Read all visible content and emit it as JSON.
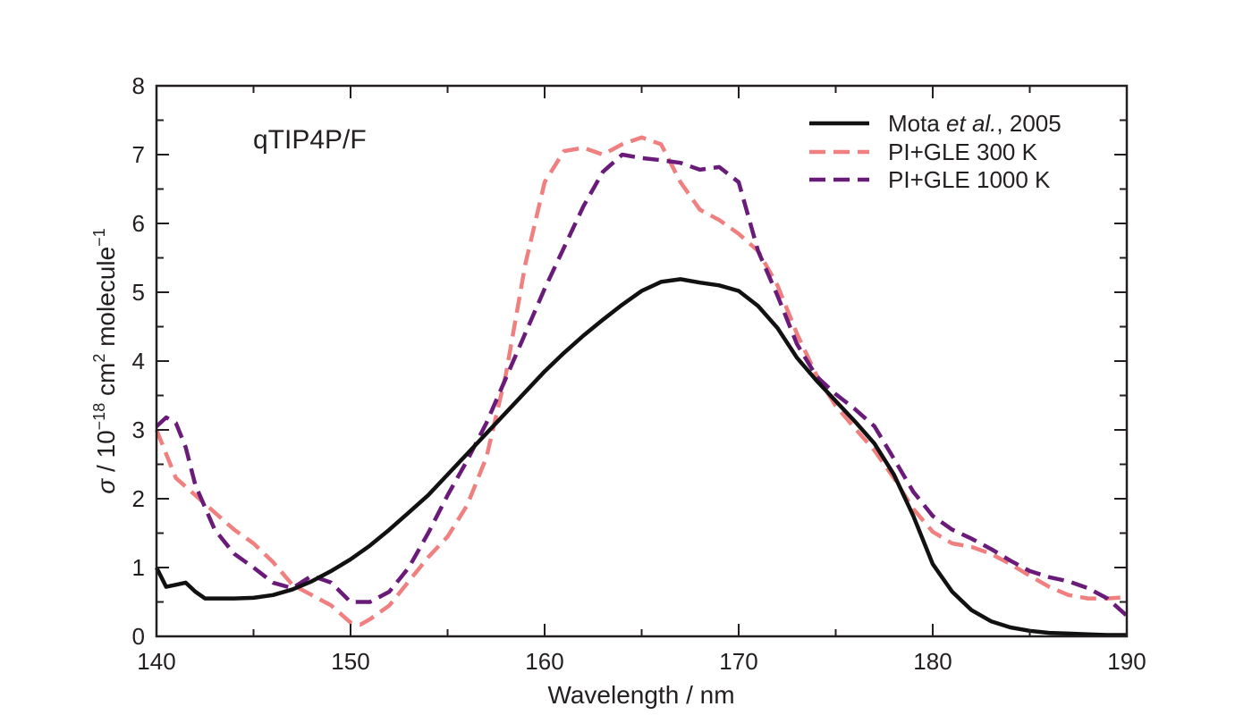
{
  "chart_data": {
    "type": "line",
    "annotation": "qTIP4P/F",
    "xlabel": "Wavelength / nm",
    "ylabel": {
      "prefix": "σ",
      "mid1": " / 10",
      "sup1": "−18",
      "mid2": " cm",
      "sup2": "2",
      "mid3": " molecule",
      "sup3": "−1"
    },
    "xlim": [
      140,
      190
    ],
    "ylim": [
      0,
      8
    ],
    "xticks": [
      "140",
      "150",
      "160",
      "170",
      "180",
      "190"
    ],
    "yticks": [
      "0",
      "1",
      "2",
      "3",
      "4",
      "5",
      "6",
      "7",
      "8"
    ],
    "legend_position": "top-right",
    "series": [
      {
        "key": "mota",
        "legend": {
          "pre": "Mota ",
          "italic": "et al.",
          "post": ", 2005"
        },
        "color": "#111111",
        "dash": "solid",
        "x": [
          140,
          140.5,
          141,
          141.5,
          142,
          142.5,
          143,
          144,
          145,
          146,
          147,
          148,
          149,
          150,
          151,
          152,
          153,
          154,
          155,
          156,
          157,
          158,
          159,
          160,
          161,
          162,
          163,
          164,
          165,
          166,
          167,
          168,
          169,
          170,
          171,
          172,
          173,
          174,
          175,
          176,
          177,
          178,
          179,
          180,
          181,
          182,
          183,
          184,
          185,
          186,
          187,
          188,
          189,
          190
        ],
        "y": [
          1.0,
          0.72,
          0.75,
          0.78,
          0.65,
          0.55,
          0.55,
          0.55,
          0.56,
          0.6,
          0.68,
          0.8,
          0.95,
          1.12,
          1.32,
          1.55,
          1.8,
          2.05,
          2.35,
          2.65,
          2.95,
          3.25,
          3.55,
          3.85,
          4.12,
          4.37,
          4.6,
          4.82,
          5.02,
          5.15,
          5.19,
          5.14,
          5.1,
          5.02,
          4.8,
          4.48,
          4.05,
          3.72,
          3.42,
          3.12,
          2.8,
          2.35,
          1.75,
          1.05,
          0.65,
          0.38,
          0.22,
          0.13,
          0.08,
          0.05,
          0.04,
          0.03,
          0.02,
          0.02
        ]
      },
      {
        "key": "pi300",
        "legend": {
          "pre": "PI+GLE 300 K",
          "italic": "",
          "post": ""
        },
        "color": "#f08080",
        "dash": "dashed",
        "x": [
          140,
          141,
          142,
          143,
          144,
          145,
          146,
          147,
          148,
          149,
          150,
          150.5,
          151,
          152,
          153,
          154,
          155,
          156,
          157,
          158,
          159,
          160,
          161,
          162,
          163,
          164,
          165,
          166,
          167,
          168,
          169,
          170,
          171,
          172,
          173,
          174,
          175,
          176,
          177,
          178,
          179,
          180,
          181,
          182,
          183,
          184,
          185,
          186,
          187,
          188,
          189,
          190
        ],
        "y": [
          3.0,
          2.3,
          2.05,
          1.8,
          1.55,
          1.35,
          1.08,
          0.75,
          0.6,
          0.45,
          0.2,
          0.17,
          0.25,
          0.45,
          0.8,
          1.15,
          1.45,
          1.9,
          2.6,
          3.8,
          5.4,
          6.6,
          7.05,
          7.1,
          7.0,
          7.15,
          7.25,
          7.15,
          6.6,
          6.2,
          6.05,
          5.85,
          5.6,
          5.1,
          4.4,
          3.8,
          3.35,
          3.02,
          2.7,
          2.3,
          1.85,
          1.52,
          1.35,
          1.3,
          1.2,
          1.05,
          0.88,
          0.72,
          0.6,
          0.55,
          0.55,
          0.57
        ]
      },
      {
        "key": "pi1000",
        "legend": {
          "pre": "PI+GLE 1000 K",
          "italic": "",
          "post": ""
        },
        "color": "#6a1b7a",
        "dash": "dashed",
        "x": [
          140,
          140.5,
          141,
          141.5,
          142,
          143,
          144,
          145,
          146,
          147,
          148,
          149,
          150,
          151,
          152,
          153,
          154,
          155,
          156,
          157,
          158,
          159,
          160,
          161,
          162,
          163,
          164,
          165,
          166,
          167,
          168,
          169,
          170,
          171,
          172,
          173,
          174,
          175,
          176,
          177,
          178,
          179,
          180,
          181,
          182,
          183,
          184,
          185,
          186,
          187,
          188,
          189,
          190
        ],
        "y": [
          3.05,
          3.18,
          3.1,
          2.75,
          2.2,
          1.55,
          1.2,
          1.0,
          0.78,
          0.7,
          0.88,
          0.78,
          0.5,
          0.5,
          0.65,
          1.0,
          1.5,
          2.05,
          2.55,
          3.1,
          3.75,
          4.4,
          5.05,
          5.65,
          6.25,
          6.75,
          7.0,
          6.95,
          6.92,
          6.88,
          6.78,
          6.82,
          6.6,
          5.6,
          4.95,
          4.25,
          3.78,
          3.52,
          3.3,
          3.05,
          2.58,
          2.1,
          1.75,
          1.55,
          1.42,
          1.27,
          1.1,
          0.95,
          0.86,
          0.8,
          0.7,
          0.55,
          0.3
        ]
      }
    ]
  }
}
